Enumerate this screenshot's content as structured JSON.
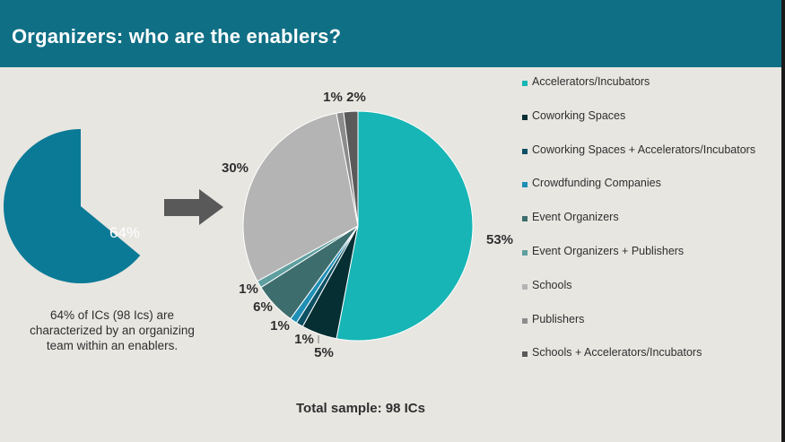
{
  "slide": {
    "title": "Organizers: who are the enablers?",
    "caption_lines": [
      "64% of ICs (98 Ics) are",
      "characterized by an organizing",
      "team within an enablers."
    ],
    "total_sample": "Total sample: 98 ICs"
  },
  "colors": {
    "header": "#0f6f85",
    "background": "#e8e6e1",
    "left_pie": "#0b7a96",
    "arrow": "#595959"
  },
  "chart_data": [
    {
      "type": "pie",
      "title": "",
      "slices": [
        {
          "name": "",
          "value": 64,
          "label": "64%",
          "color": "#0b7a96"
        }
      ]
    },
    {
      "type": "pie",
      "title": "",
      "legend_placement": "right",
      "start_angle_deg": 0,
      "direction": "clockwise",
      "slices": [
        {
          "name": "Accelerators/Incubators",
          "value": 53,
          "label": "53%",
          "color": "#17b5b5"
        },
        {
          "name": "Coworking Spaces",
          "value": 5,
          "label": "5%",
          "color": "#062f33"
        },
        {
          "name": "Coworking Spaces + Accelerators/Incubators",
          "value": 1,
          "label": "1%",
          "color": "#0e5064"
        },
        {
          "name": "Crowdfunding Companies",
          "value": 1,
          "label": "1%",
          "color": "#1f8fb5"
        },
        {
          "name": "Event Organizers",
          "value": 6,
          "label": "6%",
          "color": "#3e6d6d"
        },
        {
          "name": "Event Organizers + Publishers",
          "value": 1,
          "label": "1%",
          "color": "#5f9fa0"
        },
        {
          "name": "Schools",
          "value": 30,
          "label": "30%",
          "color": "#b4b4b4"
        },
        {
          "name": "Publishers",
          "value": 1,
          "label": "1%",
          "color": "#8c8c8c"
        },
        {
          "name": "Schools + Accelerators/Incubators",
          "value": 2,
          "label": "2%",
          "color": "#5a5a5a"
        }
      ]
    }
  ]
}
